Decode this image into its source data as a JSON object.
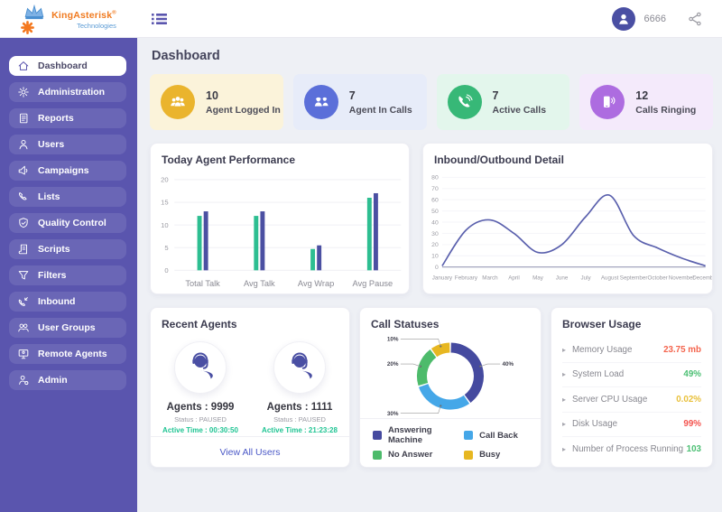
{
  "brand": {
    "name": "KingAsterisk",
    "registered": "®",
    "tagline": "Technologies"
  },
  "topbar": {
    "user_id": "6666"
  },
  "page": {
    "title": "Dashboard"
  },
  "sidebar": {
    "items": [
      {
        "label": "Dashboard",
        "icon": "home-icon",
        "active": true
      },
      {
        "label": "Administration",
        "icon": "gear-icon",
        "active": false
      },
      {
        "label": "Reports",
        "icon": "report-icon",
        "active": false
      },
      {
        "label": "Users",
        "icon": "user-icon",
        "active": false
      },
      {
        "label": "Campaigns",
        "icon": "megaphone-icon",
        "active": false
      },
      {
        "label": "Lists",
        "icon": "phone-outline-icon",
        "active": false
      },
      {
        "label": "Quality Control",
        "icon": "shield-icon",
        "active": false
      },
      {
        "label": "Scripts",
        "icon": "script-icon",
        "active": false
      },
      {
        "label": "Filters",
        "icon": "funnel-icon",
        "active": false
      },
      {
        "label": "Inbound",
        "icon": "inbound-phone-icon",
        "active": false
      },
      {
        "label": "User Groups",
        "icon": "users-group-icon",
        "active": false
      },
      {
        "label": "Remote Agents",
        "icon": "remote-agent-icon",
        "active": false
      },
      {
        "label": "Admin",
        "icon": "admin-user-icon",
        "active": false
      }
    ]
  },
  "stats": [
    {
      "value": "10",
      "label": "Agent Logged In",
      "icon": "agents-group-icon",
      "bg": "#fbf3da",
      "circle": "#eab42d"
    },
    {
      "value": "7",
      "label": "Agent In Calls",
      "icon": "agent-headsets-icon",
      "bg": "#e7ecf9",
      "circle": "#5b6fd9"
    },
    {
      "value": "7",
      "label": "Active Calls",
      "icon": "phone-filled-icon",
      "bg": "#e3f6ec",
      "circle": "#37b877"
    },
    {
      "value": "12",
      "label": "Calls Ringing",
      "icon": "mobile-ring-icon",
      "bg": "#f4eafb",
      "circle": "#ad6ce0"
    }
  ],
  "chart_data": [
    {
      "type": "bar",
      "title": "Today Agent Performance",
      "categories": [
        "Total Talk",
        "Avg Talk",
        "Avg Wrap",
        "Avg Pause"
      ],
      "series": [
        {
          "color": "#2dbe91",
          "values": [
            12,
            12,
            4.7,
            16
          ]
        },
        {
          "color": "#4b50a2",
          "values": [
            13,
            13,
            5.5,
            17
          ]
        }
      ],
      "ylim": [
        0,
        20
      ],
      "ytick_step": 5,
      "grid": true,
      "legend": "none"
    },
    {
      "type": "line",
      "title": "Inbound/Outbound Detail",
      "x": [
        "January",
        "February",
        "March",
        "April",
        "May",
        "June",
        "July",
        "August",
        "September",
        "October",
        "November",
        "December"
      ],
      "values": [
        1,
        33,
        42,
        30,
        13,
        20,
        45,
        64,
        28,
        17,
        8,
        1
      ],
      "color": "#5a60ad",
      "ylim": [
        0,
        80
      ],
      "ytick_step": 10,
      "grid": true,
      "legend": "none"
    },
    {
      "type": "pie",
      "title": "Call Statuses",
      "slices": [
        {
          "label": "Answering Machine",
          "value": 40,
          "color": "#454a9f"
        },
        {
          "label": "Call Back",
          "value": 30,
          "color": "#45a7e8"
        },
        {
          "label": "No Answer",
          "value": 20,
          "color": "#4dbb6b"
        },
        {
          "label": "Busy",
          "value": 10,
          "color": "#e7b721"
        }
      ],
      "donut": true,
      "legend": "bottom"
    }
  ],
  "recent_agents": {
    "title": "Recent Agents",
    "agents": [
      {
        "name": "Agents : 9999",
        "status": "Status : PAUSED",
        "active_time": "Active Time : 00:30:50"
      },
      {
        "name": "Agents : 1111",
        "status": "Status : PAUSED",
        "active_time": "Active Time : 21:23:28"
      }
    ],
    "link": "View All Users"
  },
  "browser_usage": {
    "title": "Browser Usage",
    "rows": [
      {
        "label": "Memory Usage",
        "value": "23.75 mb",
        "color": "#f4654e"
      },
      {
        "label": "System Load",
        "value": "49%",
        "color": "#4bbf73"
      },
      {
        "label": "Server CPU Usage",
        "value": "0.02%",
        "color": "#e9c13d"
      },
      {
        "label": "Disk Usage",
        "value": "99%",
        "color": "#f4534e"
      },
      {
        "label": "Number of Process Running",
        "value": "103",
        "color": "#4bbf73"
      }
    ]
  }
}
